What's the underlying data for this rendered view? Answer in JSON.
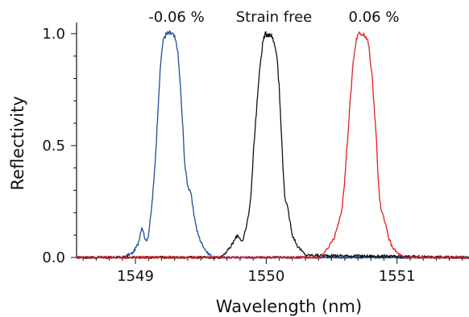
{
  "chart_data": {
    "type": "line",
    "xlabel": "Wavelength  (nm)",
    "ylabel": "Reflectivity",
    "xlim": [
      1548.55,
      1551.55
    ],
    "ylim": [
      0.0,
      1.05
    ],
    "x_ticks": [
      1549,
      1550,
      1551
    ],
    "x_tick_labels": [
      "1549",
      "1550",
      "1551"
    ],
    "y_ticks": [
      0.0,
      0.5,
      1.0
    ],
    "y_tick_labels": [
      "0.0",
      "0.5",
      "1.0"
    ],
    "grid": false,
    "legend": "none",
    "annotations": [
      "-0.06 %",
      "Strain free",
      "0.06 %"
    ],
    "series": [
      {
        "color": "#1f4e9c",
        "x": [
          1548.55,
          1548.9,
          1548.98,
          1549.02,
          1549.05,
          1549.08,
          1549.1,
          1549.12,
          1549.14,
          1549.16,
          1549.18,
          1549.2,
          1549.22,
          1549.25,
          1549.28,
          1549.3,
          1549.32,
          1549.34,
          1549.36,
          1549.38,
          1549.4,
          1549.42,
          1549.44,
          1549.47,
          1549.5,
          1549.55,
          1549.6,
          1551.55
        ],
        "y": [
          0.0,
          0.0,
          0.02,
          0.06,
          0.14,
          0.07,
          0.1,
          0.2,
          0.33,
          0.52,
          0.75,
          0.92,
          0.99,
          1.0,
          1.0,
          0.98,
          0.94,
          0.8,
          0.6,
          0.4,
          0.32,
          0.3,
          0.22,
          0.12,
          0.07,
          0.02,
          0.0,
          0.0
        ]
      },
      {
        "color": "#111111",
        "x": [
          1548.55,
          1549.65,
          1549.72,
          1549.78,
          1549.82,
          1549.85,
          1549.88,
          1549.9,
          1549.93,
          1549.96,
          1549.98,
          1550.0,
          1550.03,
          1550.05,
          1550.08,
          1550.1,
          1550.12,
          1550.14,
          1550.17,
          1550.2,
          1550.24,
          1550.3,
          1551.55
        ],
        "y": [
          0.0,
          0.0,
          0.04,
          0.1,
          0.07,
          0.14,
          0.25,
          0.45,
          0.7,
          0.9,
          0.98,
          1.0,
          1.0,
          0.98,
          0.92,
          0.75,
          0.5,
          0.28,
          0.2,
          0.1,
          0.05,
          0.01,
          0.0
        ]
      },
      {
        "color": "#e02020",
        "x": [
          1548.55,
          1550.42,
          1550.48,
          1550.52,
          1550.55,
          1550.58,
          1550.6,
          1550.63,
          1550.66,
          1550.69,
          1550.72,
          1550.75,
          1550.78,
          1550.81,
          1550.84,
          1550.86,
          1550.88,
          1550.9,
          1550.93,
          1550.96,
          1551.0,
          1551.05,
          1551.55
        ],
        "y": [
          0.0,
          0.0,
          0.05,
          0.09,
          0.15,
          0.22,
          0.35,
          0.6,
          0.85,
          0.98,
          1.0,
          1.0,
          0.96,
          0.8,
          0.55,
          0.3,
          0.2,
          0.18,
          0.1,
          0.05,
          0.02,
          0.0,
          0.0
        ]
      }
    ]
  }
}
